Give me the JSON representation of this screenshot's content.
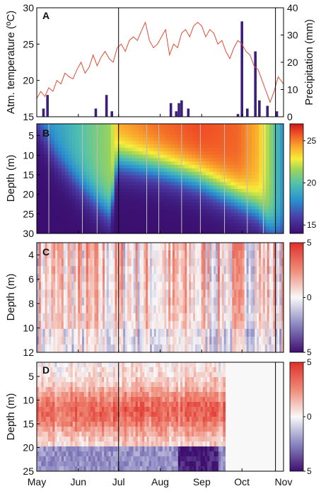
{
  "months": [
    "May",
    "Jun",
    "Jul",
    "Aug",
    "Sep",
    "Oct",
    "Nov"
  ],
  "colors": {
    "temperature_line": "#e34a33",
    "precip_bar": "#3b1f7a",
    "event_line": "#000000",
    "profile_line": "#bbbbbb"
  },
  "chart_data": [
    {
      "panel": "A",
      "type": "line+bar",
      "ylabel_left": "Atm. temperature (ºC)",
      "ylabel_right": "Precipitation (mm)",
      "ylim_left": [
        15,
        30
      ],
      "ylim_right": [
        0,
        40
      ],
      "yticks_left": [
        "15",
        "20",
        "25",
        "30"
      ],
      "yticks_right": [
        "0",
        "10",
        "20",
        "30",
        "40"
      ],
      "x_range": [
        "May 1",
        "Nov 1"
      ],
      "series": [
        {
          "type": "line",
          "color": "#e34a33",
          "x_day": [
            0,
            3,
            6,
            9,
            12,
            15,
            18,
            21,
            24,
            27,
            30,
            33,
            36,
            39,
            42,
            45,
            48,
            51,
            54,
            57,
            60,
            63,
            66,
            69,
            72,
            75,
            78,
            81,
            84,
            87,
            90,
            93,
            96,
            99,
            102,
            105,
            108,
            111,
            114,
            117,
            120,
            123,
            126,
            129,
            132,
            135,
            138,
            141,
            144,
            147,
            150,
            153,
            156,
            159,
            162,
            165,
            168,
            171,
            174,
            177,
            180,
            184
          ],
          "values": [
            17.5,
            18.5,
            17.8,
            19.0,
            18.5,
            20.0,
            19.5,
            21.0,
            20.5,
            20.2,
            21.5,
            22.5,
            21.0,
            21.8,
            23.5,
            22.0,
            23.2,
            24.0,
            23.0,
            22.5,
            24.5,
            25.0,
            24.0,
            25.5,
            26.0,
            25.5,
            26.8,
            28.0,
            25.5,
            24.5,
            25.0,
            26.0,
            27.0,
            23.5,
            25.0,
            24.5,
            26.5,
            27.0,
            26.0,
            27.5,
            28.0,
            27.5,
            26.0,
            27.0,
            26.5,
            25.0,
            25.5,
            24.0,
            23.0,
            24.5,
            25.5,
            25.0,
            24.0,
            23.5,
            22.0,
            21.5,
            20.0,
            18.5,
            17.0,
            18.5,
            20.5,
            19.5
          ]
        },
        {
          "type": "bar",
          "color": "#3b1f7a",
          "x_day": [
            5,
            8,
            44,
            52,
            56,
            100,
            104,
            106,
            108,
            113,
            150,
            153,
            157,
            163,
            166,
            172,
            179
          ],
          "values": [
            3,
            8,
            3,
            8,
            2,
            5,
            2,
            5,
            6,
            3,
            1,
            35,
            3,
            24,
            6,
            4,
            2
          ]
        }
      ]
    },
    {
      "panel": "B",
      "type": "heatmap",
      "ylabel": "Depth (m)",
      "ylim": [
        30,
        2
      ],
      "yticks": [
        "5",
        "10",
        "15",
        "20",
        "25",
        "30"
      ],
      "colorbar_ticks": [
        "15",
        "20",
        "25"
      ],
      "colorbar_range": [
        14,
        27
      ],
      "thermocline_depth": {
        "x_day": [
          0,
          15,
          30,
          45,
          55,
          60,
          90,
          120,
          150,
          165,
          172,
          178,
          184
        ],
        "values": [
          2,
          11,
          17,
          22,
          25,
          11,
          13,
          16,
          21,
          24,
          28,
          30,
          30
        ]
      },
      "surface_temp": {
        "x_day": [
          0,
          20,
          40,
          55,
          61,
          90,
          120,
          150,
          165,
          175,
          184
        ],
        "values": [
          18,
          19,
          20.5,
          21.5,
          24.5,
          25.5,
          26,
          25.5,
          24,
          21,
          18
        ]
      },
      "bottom_temp": 14.0
    },
    {
      "panel": "C",
      "type": "heatmap",
      "ylabel": "Depth (m)",
      "ylim": [
        12,
        3
      ],
      "yticks": [
        "4",
        "6",
        "8",
        "10",
        "12"
      ],
      "colorbar_ticks": [
        "5",
        "0",
        "5"
      ],
      "colorbar_range": [
        -5,
        5
      ]
    },
    {
      "panel": "D",
      "type": "heatmap",
      "ylabel": "Depth (m)",
      "ylim": [
        25,
        2
      ],
      "yticks": [
        "5",
        "10",
        "15",
        "20",
        "25"
      ],
      "colorbar_ticks": [
        "5",
        "0",
        "5"
      ],
      "colorbar_range": [
        -5,
        5
      ],
      "data_end_day": 140
    }
  ]
}
